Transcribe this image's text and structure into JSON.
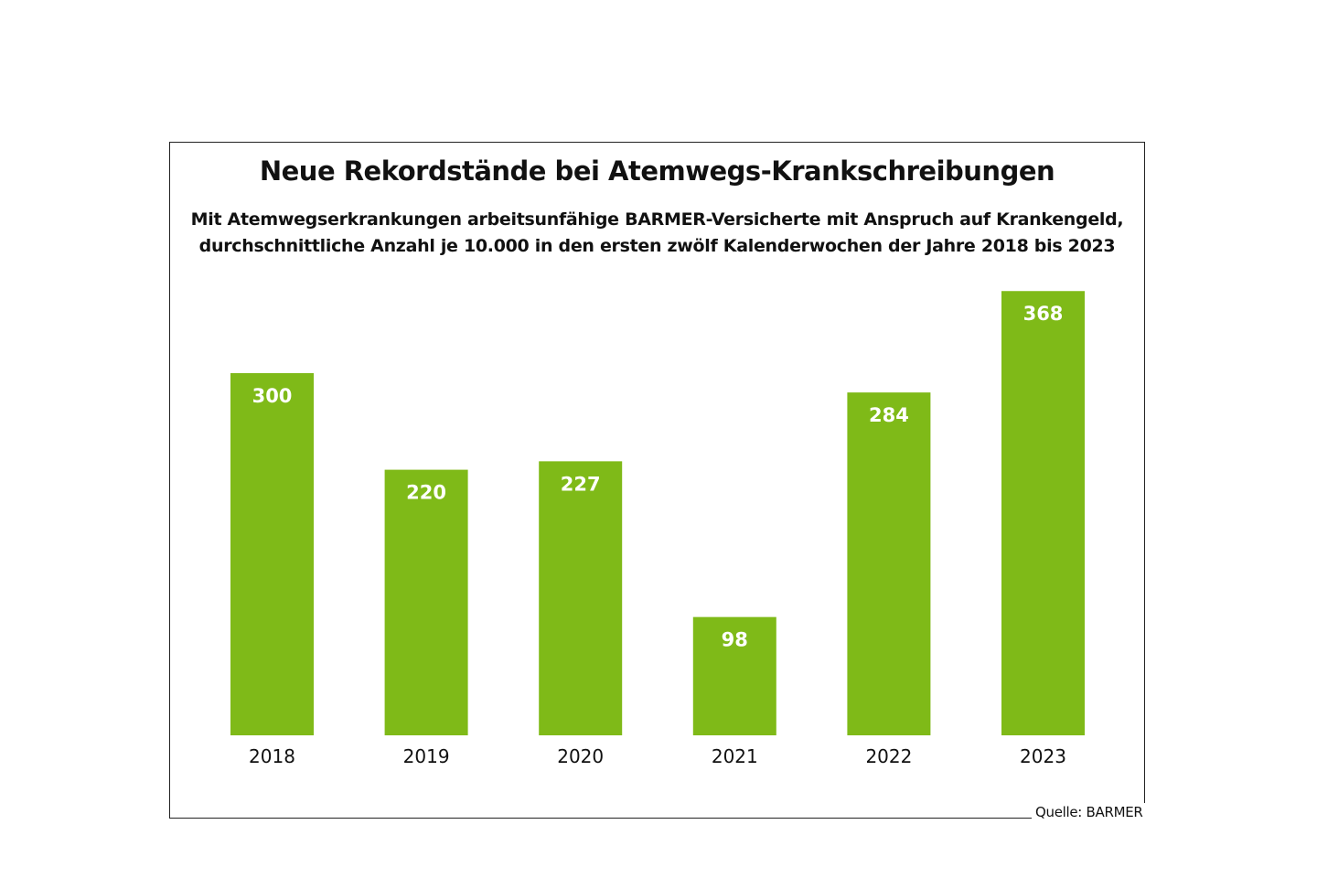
{
  "chart_data": {
    "type": "bar",
    "title": "Neue Rekordstände bei Atemwegs-Krankschreibungen",
    "subtitle": [
      "Mit Atemwegserkrankungen arbeitsunfähige BARMER-Versicherte mit Anspruch auf Krankengeld,",
      "durchschnittliche Anzahl je 10.000 in den ersten zwölf Kalenderwochen der Jahre 2018 bis 2023"
    ],
    "categories": [
      "2018",
      "2019",
      "2020",
      "2021",
      "2022",
      "2023"
    ],
    "values": [
      300,
      220,
      227,
      98,
      284,
      368
    ],
    "ylim": [
      0,
      368
    ],
    "grid": false,
    "bar_color": "#7FBA18",
    "label_color": "#FFFFFF",
    "source": "Quelle: BARMER"
  }
}
